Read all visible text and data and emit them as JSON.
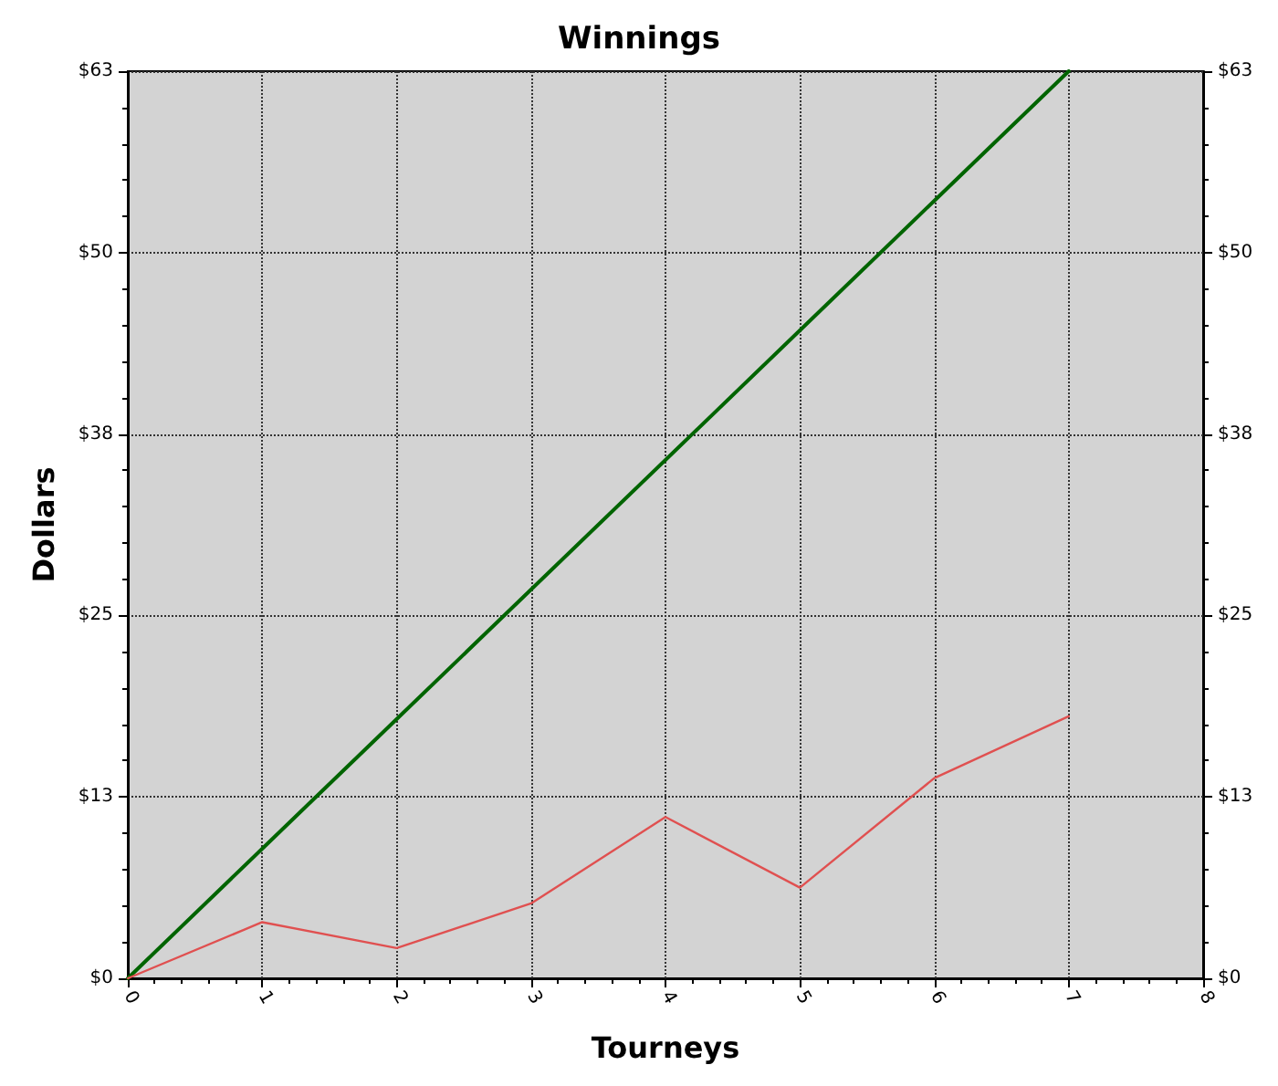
{
  "chart_data": {
    "type": "line",
    "title": "Winnings",
    "xlabel": "Tourneys",
    "ylabel": "Dollars",
    "x": [
      0,
      1,
      2,
      3,
      4,
      5,
      6,
      7
    ],
    "series": [
      {
        "color": "#006400",
        "values": [
          0,
          9,
          18,
          27,
          36,
          45,
          54,
          63
        ]
      },
      {
        "color": "#e05050",
        "values": [
          0,
          3.9,
          2.1,
          5.2,
          11.2,
          6.3,
          13.9,
          18.2
        ]
      }
    ],
    "xlim": [
      0,
      8
    ],
    "xticks": [
      0,
      1,
      2,
      3,
      4,
      5,
      6,
      7,
      8
    ],
    "ylim": [
      0,
      63
    ],
    "yticks": [
      {
        "value": 0,
        "label": "$0"
      },
      {
        "value": 12.6,
        "label": "$13"
      },
      {
        "value": 25.2,
        "label": "$25"
      },
      {
        "value": 37.8,
        "label": "$38"
      },
      {
        "value": 50.4,
        "label": "$50"
      },
      {
        "value": 63,
        "label": "$63"
      }
    ],
    "y2lim": [
      0,
      63
    ],
    "y2ticks": [
      {
        "value": 0,
        "label": "$0"
      },
      {
        "value": 12.6,
        "label": "$13"
      },
      {
        "value": 25.2,
        "label": "$25"
      },
      {
        "value": 37.8,
        "label": "$38"
      },
      {
        "value": 50.4,
        "label": "$50"
      },
      {
        "value": 63,
        "label": "$63"
      }
    ],
    "grid": true,
    "marker": "none",
    "line_style": "solid"
  }
}
